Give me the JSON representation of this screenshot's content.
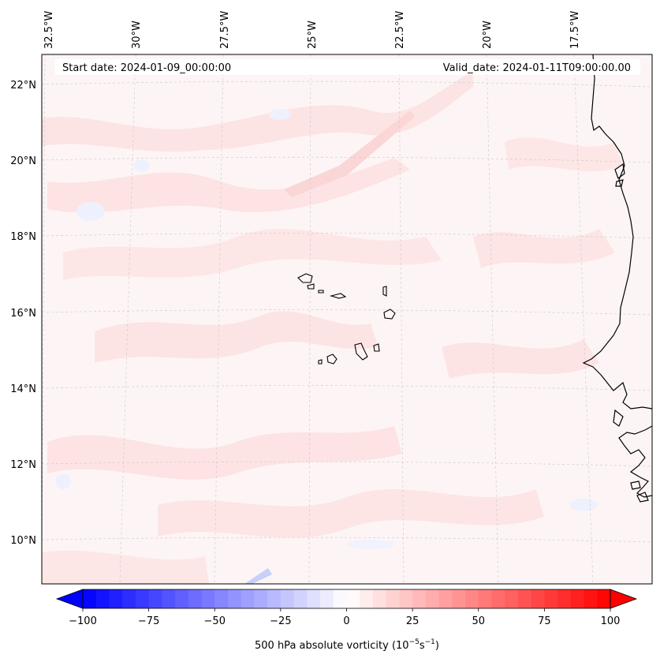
{
  "map": {
    "start_date_label": "Start date: 2024-01-09_00:00:00",
    "valid_date_label": "Valid_date: 2024-01-11T09:00:00.00",
    "lon_ticks": [
      "32.5°W",
      "30°W",
      "27.5°W",
      "25°W",
      "22.5°W",
      "20°W",
      "17.5°W"
    ],
    "lat_ticks": [
      "22°N",
      "20°N",
      "18°N",
      "16°N",
      "14°N",
      "12°N",
      "10°N"
    ],
    "background_color": "#fdf5f5",
    "land_outline_color": "#000000",
    "gridlines": true
  },
  "colorbar": {
    "label_prefix": "500 hPa absolute vorticity (10",
    "label_exp1": "−5",
    "label_mid": "s",
    "label_exp2": "−1",
    "label_suffix": ")",
    "ticks": [
      "−100",
      "−75",
      "−50",
      "−25",
      "0",
      "25",
      "50",
      "75",
      "100"
    ],
    "min_color": "#0000ff",
    "mid_color": "#ffffff",
    "max_color": "#ff0000",
    "extend": "both"
  }
}
